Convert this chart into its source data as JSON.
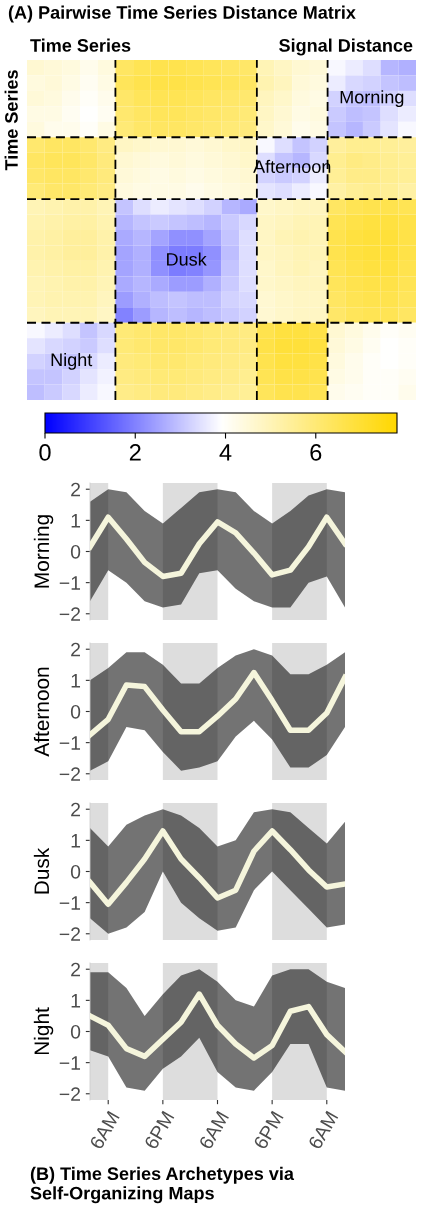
{
  "chart_data": [
    {
      "type": "heatmap",
      "title": "(A) Pairwise Time Series Distance Matrix",
      "xlabel": "Time Series",
      "ylabel": "Time Series",
      "clabel": "Signal Distance",
      "categories": [
        null,
        null,
        null,
        null,
        null,
        null,
        null,
        null,
        null,
        null,
        null,
        null,
        null,
        null,
        null,
        null,
        null,
        null,
        null,
        null,
        null,
        null
      ],
      "y_categories": [
        null,
        null,
        null,
        null,
        null,
        null,
        null,
        null,
        null,
        null,
        null,
        null,
        null,
        null,
        null,
        null,
        null,
        null,
        null,
        null,
        null,
        null
      ],
      "colors": [
        "#0000ff",
        "#ffffff",
        "#ffd700"
      ],
      "clim": [
        0,
        7.8
      ],
      "cticks": [
        0,
        2,
        4,
        6
      ],
      "cells": [
        [
          4.6,
          4.5,
          4.4,
          4.2,
          4.4,
          6.3,
          6.5,
          6.6,
          6.6,
          6.5,
          6.4,
          6.3,
          6.2,
          5.0,
          4.8,
          4.6,
          4.5,
          3.8,
          3.6,
          3.4,
          2.8,
          2.7
        ],
        [
          4.4,
          4.5,
          4.3,
          4.1,
          4.3,
          6.4,
          6.6,
          6.7,
          6.7,
          6.6,
          6.5,
          6.4,
          6.3,
          5.1,
          4.9,
          4.5,
          4.4,
          3.6,
          3.3,
          3.2,
          3.0,
          2.9
        ],
        [
          4.5,
          4.4,
          4.2,
          4.0,
          4.2,
          6.2,
          6.4,
          6.5,
          6.5,
          6.4,
          6.3,
          6.2,
          6.1,
          4.9,
          4.7,
          4.4,
          4.3,
          3.2,
          3.0,
          2.9,
          3.2,
          3.4
        ],
        [
          4.3,
          4.3,
          4.1,
          3.9,
          4.1,
          6.1,
          6.3,
          6.4,
          6.4,
          6.3,
          6.2,
          6.1,
          6.0,
          4.8,
          4.6,
          4.3,
          4.4,
          3.1,
          2.9,
          3.0,
          3.4,
          3.6
        ],
        [
          4.4,
          4.2,
          4.2,
          4.0,
          4.3,
          6.0,
          6.2,
          6.3,
          6.3,
          6.2,
          6.1,
          6.0,
          5.9,
          4.7,
          4.5,
          4.2,
          4.3,
          3.0,
          2.8,
          3.1,
          3.5,
          3.8
        ],
        [
          6.1,
          6.3,
          6.3,
          6.1,
          5.8,
          4.8,
          4.7,
          4.6,
          4.6,
          4.5,
          4.6,
          4.7,
          4.8,
          3.8,
          3.4,
          3.0,
          3.2,
          5.4,
          5.6,
          5.6,
          5.5,
          5.4
        ],
        [
          6.3,
          6.4,
          6.4,
          6.2,
          5.9,
          4.6,
          4.5,
          4.4,
          4.5,
          4.4,
          4.5,
          4.6,
          4.7,
          3.4,
          3.0,
          2.8,
          3.3,
          5.6,
          5.8,
          5.7,
          5.6,
          5.5
        ],
        [
          6.2,
          6.3,
          6.3,
          6.1,
          5.9,
          4.5,
          4.4,
          4.3,
          4.4,
          4.3,
          4.4,
          4.5,
          4.6,
          3.2,
          3.1,
          3.2,
          3.6,
          5.5,
          5.7,
          5.7,
          5.6,
          5.5
        ],
        [
          6.0,
          6.2,
          6.2,
          6.0,
          5.8,
          4.4,
          4.3,
          4.3,
          4.3,
          4.2,
          4.3,
          4.4,
          4.5,
          3.5,
          3.4,
          3.6,
          3.8,
          5.3,
          5.5,
          5.6,
          5.5,
          5.3
        ],
        [
          5.0,
          5.1,
          5.2,
          5.2,
          5.0,
          3.0,
          3.4,
          3.6,
          3.5,
          3.4,
          3.2,
          2.8,
          2.6,
          4.7,
          4.8,
          4.9,
          4.9,
          6.3,
          6.5,
          6.6,
          6.6,
          6.5
        ],
        [
          5.1,
          5.2,
          5.3,
          5.3,
          5.1,
          2.8,
          3.0,
          3.1,
          3.0,
          2.9,
          2.8,
          3.1,
          3.3,
          4.8,
          4.9,
          5.0,
          5.0,
          6.5,
          6.7,
          6.8,
          6.8,
          6.7
        ],
        [
          5.2,
          5.3,
          5.4,
          5.4,
          5.2,
          2.6,
          2.8,
          2.5,
          2.2,
          2.2,
          2.5,
          3.0,
          3.4,
          4.8,
          5.0,
          5.1,
          5.0,
          6.6,
          6.8,
          6.9,
          6.9,
          6.7
        ],
        [
          5.2,
          5.3,
          5.4,
          5.4,
          5.2,
          2.5,
          2.7,
          2.2,
          1.9,
          1.9,
          2.2,
          2.9,
          3.4,
          4.8,
          4.9,
          5.0,
          5.0,
          6.6,
          6.8,
          6.9,
          6.9,
          6.7
        ],
        [
          5.1,
          5.2,
          5.3,
          5.3,
          5.1,
          2.5,
          2.7,
          2.2,
          1.9,
          2.0,
          2.3,
          3.0,
          3.4,
          4.7,
          4.9,
          5.0,
          4.9,
          6.5,
          6.7,
          6.8,
          6.8,
          6.6
        ],
        [
          5.0,
          5.1,
          5.2,
          5.2,
          5.0,
          2.6,
          2.8,
          2.6,
          2.4,
          2.4,
          2.7,
          3.1,
          3.4,
          4.7,
          4.8,
          4.9,
          4.9,
          6.4,
          6.6,
          6.7,
          6.7,
          6.5
        ],
        [
          5.0,
          5.1,
          5.1,
          5.1,
          4.9,
          2.4,
          2.7,
          2.9,
          3.0,
          2.9,
          2.9,
          3.2,
          3.3,
          4.6,
          4.7,
          4.8,
          4.8,
          6.3,
          6.5,
          6.6,
          6.6,
          6.4
        ],
        [
          4.9,
          5.0,
          5.0,
          5.0,
          4.8,
          2.0,
          2.4,
          2.8,
          2.9,
          2.8,
          2.9,
          3.1,
          3.2,
          4.6,
          4.7,
          4.8,
          4.8,
          6.2,
          6.4,
          6.5,
          6.5,
          6.3
        ],
        [
          3.8,
          3.6,
          3.4,
          3.0,
          3.3,
          6.0,
          6.1,
          6.2,
          6.2,
          6.1,
          6.0,
          5.9,
          5.8,
          6.6,
          6.8,
          6.8,
          6.7,
          4.6,
          4.4,
          4.2,
          4.0,
          4.1
        ],
        [
          3.5,
          3.3,
          3.2,
          3.1,
          3.4,
          6.0,
          6.1,
          6.2,
          6.2,
          6.1,
          6.0,
          5.9,
          5.8,
          6.7,
          6.9,
          6.9,
          6.8,
          4.5,
          4.3,
          4.1,
          3.9,
          4.0
        ],
        [
          3.2,
          3.1,
          3.0,
          3.3,
          3.6,
          5.9,
          6.0,
          6.1,
          6.1,
          6.0,
          5.9,
          5.8,
          5.7,
          6.6,
          6.8,
          6.8,
          6.7,
          4.4,
          4.2,
          4.0,
          3.9,
          4.0
        ],
        [
          3.0,
          3.0,
          3.2,
          3.5,
          3.7,
          5.8,
          5.9,
          6.0,
          6.0,
          5.9,
          5.8,
          5.7,
          5.6,
          6.5,
          6.7,
          6.7,
          6.6,
          4.3,
          4.2,
          4.0,
          4.0,
          4.1
        ],
        [
          2.9,
          3.1,
          3.3,
          3.6,
          3.8,
          5.7,
          5.8,
          5.9,
          5.9,
          5.8,
          5.7,
          5.6,
          5.5,
          6.4,
          6.6,
          6.6,
          6.5,
          4.2,
          4.1,
          4.0,
          4.0,
          4.2
        ]
      ],
      "annotations": [
        "Morning",
        "Afternoon",
        "Dusk",
        "Night"
      ]
    },
    {
      "type": "line",
      "ylabel": "Morning",
      "categories": [
        null,
        null,
        null,
        null,
        null,
        null,
        null,
        null,
        null,
        null,
        null,
        null,
        null,
        null,
        null
      ],
      "ylim": [
        -2.2,
        2.2
      ],
      "yticks": [
        -2,
        -1,
        0,
        1,
        2
      ],
      "series": [
        {
          "color": "#f5f5dc",
          "values": [
            0.15,
            1.1,
            0.4,
            -0.35,
            -0.8,
            -0.7,
            0.25,
            0.95,
            0.6,
            -0.05,
            -0.75,
            -0.6,
            0.15,
            1.1,
            0.25
          ],
          "upper": [
            1.6,
            2.0,
            1.9,
            1.3,
            0.9,
            1.4,
            1.9,
            2.0,
            1.9,
            1.3,
            0.9,
            1.3,
            1.8,
            2.0,
            1.9
          ],
          "lower": [
            -1.6,
            -0.6,
            -1.0,
            -1.6,
            -1.8,
            -1.7,
            -0.7,
            -0.6,
            -1.2,
            -1.6,
            -1.8,
            -1.8,
            -1.0,
            -0.8,
            -1.8
          ]
        }
      ]
    },
    {
      "type": "line",
      "ylabel": "Afternoon",
      "categories": [
        null,
        null,
        null,
        null,
        null,
        null,
        null,
        null,
        null,
        null,
        null,
        null,
        null,
        null,
        null
      ],
      "ylim": [
        -2.2,
        2.2
      ],
      "yticks": [
        -2,
        -1,
        0,
        1,
        2
      ],
      "series": [
        {
          "color": "#f5f5dc",
          "values": [
            -0.75,
            -0.25,
            0.85,
            0.8,
            0.05,
            -0.65,
            -0.65,
            -0.15,
            0.4,
            1.25,
            0.35,
            -0.6,
            -0.6,
            -0.05,
            1.1
          ],
          "upper": [
            1.0,
            1.4,
            1.9,
            1.9,
            1.5,
            0.9,
            0.9,
            1.4,
            1.8,
            2.0,
            1.8,
            1.2,
            1.2,
            1.5,
            1.9
          ],
          "lower": [
            -1.9,
            -1.6,
            -0.5,
            -0.6,
            -1.3,
            -1.9,
            -1.8,
            -1.6,
            -0.8,
            -0.3,
            -0.9,
            -1.8,
            -1.8,
            -1.4,
            -0.5
          ]
        }
      ]
    },
    {
      "type": "line",
      "ylabel": "Dusk",
      "categories": [
        null,
        null,
        null,
        null,
        null,
        null,
        null,
        null,
        null,
        null,
        null,
        null,
        null,
        null,
        null
      ],
      "ylim": [
        -2.2,
        2.2
      ],
      "yticks": [
        -2,
        -1,
        0,
        1,
        2
      ],
      "series": [
        {
          "color": "#f5f5dc",
          "values": [
            -0.35,
            -1.05,
            -0.35,
            0.4,
            1.3,
            0.4,
            -0.2,
            -0.85,
            -0.6,
            0.65,
            1.3,
            0.7,
            0.05,
            -0.5,
            -0.4
          ],
          "upper": [
            1.4,
            0.8,
            1.5,
            1.8,
            2.0,
            1.8,
            1.4,
            0.8,
            1.0,
            1.9,
            2.0,
            1.9,
            1.4,
            0.9,
            1.6
          ],
          "lower": [
            -1.5,
            -2.0,
            -1.8,
            -1.3,
            0.0,
            -1.0,
            -1.5,
            -1.9,
            -1.8,
            -0.6,
            0.0,
            -0.6,
            -1.2,
            -1.8,
            -1.7
          ]
        }
      ]
    },
    {
      "type": "line",
      "ylabel": "Night",
      "categories": [
        null,
        "6AM",
        null,
        null,
        "6PM",
        null,
        null,
        "6AM",
        null,
        null,
        "6PM",
        null,
        null,
        "6AM",
        null
      ],
      "ylim": [
        -2.2,
        2.2
      ],
      "yticks": [
        -2,
        -1,
        0,
        1,
        2
      ],
      "series": [
        {
          "color": "#f5f5dc",
          "values": [
            0.5,
            0.2,
            -0.55,
            -0.8,
            -0.25,
            0.3,
            1.2,
            0.2,
            -0.4,
            -0.85,
            -0.45,
            0.65,
            0.8,
            -0.1,
            -0.65
          ],
          "upper": [
            1.9,
            1.9,
            1.4,
            0.5,
            1.2,
            1.8,
            2.0,
            1.6,
            1.0,
            0.8,
            1.8,
            2.0,
            2.0,
            1.6,
            1.4
          ],
          "lower": [
            -0.6,
            -0.8,
            -1.8,
            -1.9,
            -1.2,
            -0.8,
            -0.2,
            -1.3,
            -1.8,
            -1.9,
            -1.3,
            -0.4,
            -0.4,
            -1.8,
            -1.9
          ]
        }
      ],
      "annotations": [
        "(B) Time Series Archetypes via Self-Organizing Maps"
      ]
    }
  ]
}
